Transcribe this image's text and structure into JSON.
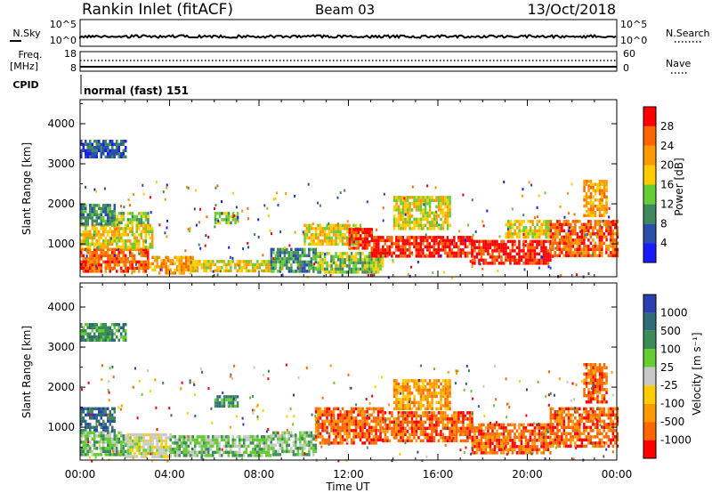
{
  "header": {
    "station": "Rankin Inlet (fitACF)",
    "beam": "Beam 03",
    "date": "13/Oct/2018"
  },
  "summary_panels": {
    "nsky": {
      "left_label": "N.Sky",
      "right_label": "N.Search",
      "left_ticks": [
        "10^5",
        "10^0"
      ],
      "right_ticks": [
        "10^5",
        "10^0"
      ]
    },
    "freq": {
      "left_label": "Freq.",
      "left_unit": "[MHz]",
      "right_label": "Nave",
      "left_ticks": [
        "18",
        "8"
      ],
      "right_ticks": [
        "60",
        "0"
      ]
    },
    "cpid": {
      "label": "CPID",
      "mode_text": "normal (fast) 151"
    }
  },
  "colors": {
    "power": [
      "#1a1aff",
      "#2a4faa",
      "#3f8a5c",
      "#66cc33",
      "#ffcc00",
      "#ff9900",
      "#ff6600",
      "#ff0000"
    ],
    "velocity": [
      "#2a3fb0",
      "#306c78",
      "#3c8c5a",
      "#66cc33",
      "#c8c8c8",
      "#ffcc00",
      "#ff9900",
      "#ff6600",
      "#ff0000"
    ]
  },
  "chart_data": [
    {
      "type": "heatmap",
      "name": "power",
      "xlabel": "Time UT",
      "ylabel": "Slant Range [km]",
      "x_ticks": [
        "00:00",
        "04:00",
        "08:00",
        "12:00",
        "16:00",
        "20:00",
        "00:00"
      ],
      "xlim_hours": [
        0,
        24
      ],
      "ylim": [
        180,
        4600
      ],
      "y_ticks": [
        1000,
        2000,
        3000,
        4000
      ],
      "colorbar": {
        "label": "Power [dB]",
        "ticks": [
          "4",
          "8",
          "12",
          "16",
          "20",
          "24",
          "28"
        ],
        "range": [
          0,
          30
        ]
      },
      "regions": [
        {
          "t": [
            0.0,
            3.0
          ],
          "r": [
            300,
            900
          ],
          "level": 6
        },
        {
          "t": [
            0.0,
            3.2
          ],
          "r": [
            900,
            1500
          ],
          "level": 4
        },
        {
          "t": [
            0.0,
            1.5
          ],
          "r": [
            1500,
            2000
          ],
          "level": 2
        },
        {
          "t": [
            1.5,
            3.0
          ],
          "r": [
            1550,
            1800
          ],
          "level": 3
        },
        {
          "t": [
            3.0,
            5.0
          ],
          "r": [
            300,
            700
          ],
          "level": 5
        },
        {
          "t": [
            5.0,
            8.5
          ],
          "r": [
            300,
            600
          ],
          "level": 4
        },
        {
          "t": [
            6.0,
            7.0
          ],
          "r": [
            1500,
            1800
          ],
          "level": 3
        },
        {
          "t": [
            8.5,
            10.5
          ],
          "r": [
            300,
            900
          ],
          "level": 2
        },
        {
          "t": [
            10.5,
            13.5
          ],
          "r": [
            300,
            800
          ],
          "level": 3
        },
        {
          "t": [
            10.0,
            12.5
          ],
          "r": [
            1000,
            1500
          ],
          "level": 4
        },
        {
          "t": [
            12.0,
            13.0
          ],
          "r": [
            900,
            1400
          ],
          "level": 7
        },
        {
          "t": [
            13.0,
            17.5
          ],
          "r": [
            700,
            1200
          ],
          "level": 7
        },
        {
          "t": [
            14.0,
            16.5
          ],
          "r": [
            1400,
            2200
          ],
          "level": 4
        },
        {
          "t": [
            17.5,
            21.0
          ],
          "r": [
            500,
            1100
          ],
          "level": 7
        },
        {
          "t": [
            19.0,
            21.0
          ],
          "r": [
            1200,
            1600
          ],
          "level": 4
        },
        {
          "t": [
            21.0,
            24.0
          ],
          "r": [
            700,
            1600
          ],
          "level": 6
        },
        {
          "t": [
            22.5,
            23.5
          ],
          "r": [
            1700,
            2600
          ],
          "level": 5
        },
        {
          "t": [
            0.0,
            2.0
          ],
          "r": [
            3200,
            3600
          ],
          "level": 1
        }
      ]
    },
    {
      "type": "heatmap",
      "name": "velocity",
      "xlabel": "Time UT",
      "ylabel": "Slant Range [km]",
      "x_ticks": [
        "00:00",
        "04:00",
        "08:00",
        "12:00",
        "16:00",
        "20:00",
        "00:00"
      ],
      "xlim_hours": [
        0,
        24
      ],
      "ylim": [
        180,
        4600
      ],
      "y_ticks": [
        1000,
        2000,
        3000,
        4000
      ],
      "colorbar": {
        "label": "Velocity [m s⁻¹]",
        "ticks": [
          "1000",
          "500",
          "100",
          "25",
          "-25",
          "-100",
          "-500",
          "-1000"
        ]
      },
      "regions": [
        {
          "t": [
            0.0,
            1.5
          ],
          "r": [
            900,
            1500
          ],
          "level": 1
        },
        {
          "t": [
            0.0,
            2.0
          ],
          "r": [
            300,
            900
          ],
          "level": 3
        },
        {
          "t": [
            2.0,
            4.0
          ],
          "r": [
            300,
            850
          ],
          "level": 4
        },
        {
          "t": [
            4.0,
            8.5
          ],
          "r": [
            300,
            800
          ],
          "level": 3
        },
        {
          "t": [
            6.0,
            7.0
          ],
          "r": [
            1500,
            1800
          ],
          "level": 2
        },
        {
          "t": [
            8.5,
            10.5
          ],
          "r": [
            300,
            900
          ],
          "level": 3
        },
        {
          "t": [
            10.5,
            13.5
          ],
          "r": [
            600,
            1500
          ],
          "level": 7
        },
        {
          "t": [
            13.5,
            17.5
          ],
          "r": [
            700,
            1400
          ],
          "level": 7
        },
        {
          "t": [
            14.0,
            16.5
          ],
          "r": [
            1500,
            2200
          ],
          "level": 6
        },
        {
          "t": [
            17.5,
            21.0
          ],
          "r": [
            400,
            1100
          ],
          "level": 7
        },
        {
          "t": [
            21.0,
            24.0
          ],
          "r": [
            500,
            1500
          ],
          "level": 7
        },
        {
          "t": [
            22.5,
            23.5
          ],
          "r": [
            1600,
            2600
          ],
          "level": 7
        },
        {
          "t": [
            0.0,
            2.0
          ],
          "r": [
            3200,
            3600
          ],
          "level": 2
        }
      ]
    }
  ]
}
